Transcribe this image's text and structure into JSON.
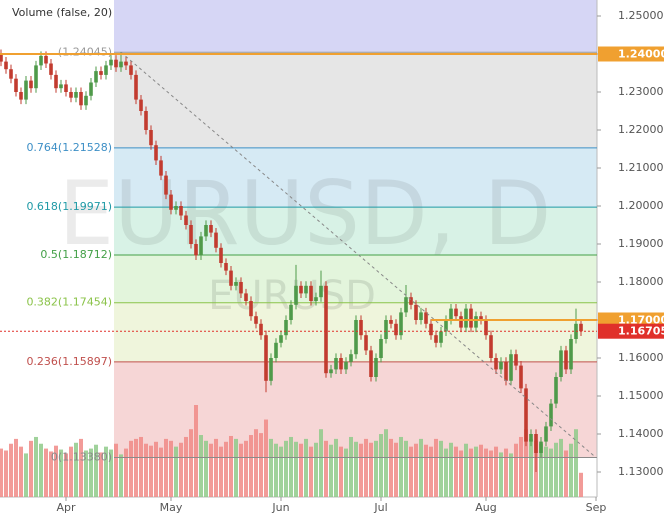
{
  "chart_data": {
    "type": "candlestick",
    "volume_label": "Volume (false, 20)",
    "watermark": "EURUSD, D",
    "watermark_sub": "EURUSD",
    "up_color": "#4f9a4a",
    "down_color": "#c23b2f",
    "volume_up_color": "#8fca8a",
    "volume_down_color": "#f08a86",
    "xlim": [
      -0.2,
      119.2
    ],
    "xticks": [
      {
        "value": 13,
        "label": "Apr"
      },
      {
        "value": 34,
        "label": "May"
      },
      {
        "value": 56,
        "label": "Jun"
      },
      {
        "value": 76,
        "label": "Jul"
      },
      {
        "value": 97,
        "label": "Aug"
      },
      {
        "value": 119,
        "label": "Sep"
      }
    ],
    "ylim": [
      1.12342,
      1.25421
    ],
    "yticks": [
      {
        "value": 1.25,
        "label": "1.25000"
      },
      {
        "value": 1.24,
        "label": "1.24000"
      },
      {
        "value": 1.23,
        "label": "1.23000"
      },
      {
        "value": 1.22,
        "label": "1.22000"
      },
      {
        "value": 1.21,
        "label": "1.21000"
      },
      {
        "value": 1.2,
        "label": "1.20000"
      },
      {
        "value": 1.19,
        "label": "1.19000"
      },
      {
        "value": 1.18,
        "label": "1.18000"
      },
      {
        "value": 1.17,
        "label": "1.17000"
      },
      {
        "value": 1.16,
        "label": "1.16000"
      },
      {
        "value": 1.15,
        "label": "1.15000"
      },
      {
        "value": 1.14,
        "label": "1.14000"
      },
      {
        "value": 1.13,
        "label": "1.13000"
      }
    ],
    "open": [
      1.24,
      1.238,
      1.236,
      1.2335,
      1.23,
      1.228,
      1.233,
      1.231,
      1.237,
      1.2395,
      1.2375,
      1.2345,
      1.231,
      1.232,
      1.23,
      1.2285,
      1.23,
      1.2265,
      1.229,
      1.2325,
      1.2355,
      1.2345,
      1.237,
      1.2385,
      1.2365,
      1.238,
      1.237,
      1.2345,
      1.228,
      1.225,
      1.22,
      1.216,
      1.212,
      1.208,
      1.203,
      1.199,
      1.2,
      1.1975,
      1.195,
      1.19,
      1.187,
      1.192,
      1.195,
      1.193,
      1.189,
      1.185,
      1.183,
      1.179,
      1.18,
      1.177,
      1.175,
      1.171,
      1.169,
      1.166,
      1.154,
      1.16,
      1.164,
      1.166,
      1.17,
      1.174,
      1.179,
      1.177,
      1.179,
      1.175,
      1.176,
      1.179,
      1.156,
      1.157,
      1.16,
      1.157,
      1.159,
      1.161,
      1.17,
      1.166,
      1.162,
      1.155,
      1.16,
      1.165,
      1.17,
      1.169,
      1.166,
      1.172,
      1.176,
      1.174,
      1.17,
      1.172,
      1.169,
      1.166,
      1.164,
      1.167,
      1.17,
      1.173,
      1.171,
      1.168,
      1.173,
      1.168,
      1.171,
      1.17,
      1.166,
      1.16,
      1.157,
      1.159,
      1.154,
      1.161,
      1.158,
      1.152,
      1.138,
      1.14,
      1.135,
      1.138,
      1.142,
      1.148,
      1.155,
      1.162,
      1.157,
      1.165,
      1.169
    ],
    "high": [
      1.2412,
      1.2392,
      1.2372,
      1.2347,
      1.2312,
      1.2342,
      1.2342,
      1.2382,
      1.2407,
      1.2407,
      1.2387,
      1.2357,
      1.2332,
      1.2332,
      1.2312,
      1.2312,
      1.2312,
      1.2302,
      1.2337,
      1.2367,
      1.2367,
      1.2382,
      1.2397,
      1.2397,
      1.2405,
      1.2392,
      1.2382,
      1.2357,
      1.2292,
      1.2262,
      1.2212,
      1.2172,
      1.2132,
      1.2092,
      1.2042,
      1.2012,
      1.2012,
      1.1987,
      1.1962,
      1.1912,
      1.1932,
      1.1962,
      1.1962,
      1.1942,
      1.1902,
      1.1862,
      1.1842,
      1.1812,
      1.1812,
      1.1782,
      1.1762,
      1.1722,
      1.1702,
      1.1672,
      1.1612,
      1.1652,
      1.1672,
      1.1712,
      1.1752,
      1.1845,
      1.1802,
      1.1802,
      1.1802,
      1.1772,
      1.183,
      1.1802,
      1.1582,
      1.1612,
      1.1612,
      1.1602,
      1.1622,
      1.1712,
      1.1712,
      1.1672,
      1.1632,
      1.1612,
      1.1662,
      1.1712,
      1.1712,
      1.1702,
      1.1732,
      1.1792,
      1.1772,
      1.1752,
      1.1732,
      1.1732,
      1.1702,
      1.1672,
      1.1682,
      1.1712,
      1.1742,
      1.1742,
      1.1722,
      1.1742,
      1.1742,
      1.1722,
      1.1722,
      1.1712,
      1.1672,
      1.1612,
      1.1602,
      1.1602,
      1.1622,
      1.1622,
      1.1592,
      1.1532,
      1.1412,
      1.1412,
      1.1392,
      1.1432,
      1.1492,
      1.1562,
      1.1632,
      1.1632,
      1.1662,
      1.173,
      1.1702
    ],
    "low": [
      1.2368,
      1.2348,
      1.2323,
      1.2288,
      1.2268,
      1.2268,
      1.2298,
      1.2298,
      1.2358,
      1.2363,
      1.2333,
      1.2298,
      1.2298,
      1.2288,
      1.2273,
      1.2273,
      1.2253,
      1.2253,
      1.2278,
      1.2313,
      1.2333,
      1.2333,
      1.2358,
      1.2353,
      1.2353,
      1.2358,
      1.2333,
      1.2268,
      1.2238,
      1.2188,
      1.2148,
      1.2108,
      1.2068,
      1.2018,
      1.1978,
      1.1978,
      1.1963,
      1.1938,
      1.1888,
      1.1858,
      1.1858,
      1.1908,
      1.1918,
      1.1878,
      1.1838,
      1.1818,
      1.1778,
      1.1778,
      1.1758,
      1.1738,
      1.1698,
      1.1678,
      1.1648,
      1.151,
      1.1528,
      1.1588,
      1.1628,
      1.1648,
      1.1688,
      1.1728,
      1.1758,
      1.1758,
      1.1738,
      1.1738,
      1.1748,
      1.1548,
      1.1548,
      1.1558,
      1.1558,
      1.1558,
      1.1578,
      1.1598,
      1.1648,
      1.1608,
      1.1538,
      1.1538,
      1.1588,
      1.1638,
      1.1678,
      1.1648,
      1.1648,
      1.1708,
      1.1728,
      1.1688,
      1.1688,
      1.1678,
      1.1648,
      1.1628,
      1.1628,
      1.1658,
      1.1688,
      1.1698,
      1.1668,
      1.1668,
      1.1668,
      1.1668,
      1.1688,
      1.1648,
      1.1588,
      1.1558,
      1.1558,
      1.1528,
      1.1528,
      1.1568,
      1.1508,
      1.1368,
      1.1368,
      1.13,
      1.1338,
      1.1368,
      1.1408,
      1.1468,
      1.1538,
      1.1558,
      1.1558,
      1.1638,
      1.1658
    ],
    "close": [
      1.238,
      1.236,
      1.2335,
      1.23,
      1.228,
      1.233,
      1.231,
      1.237,
      1.2395,
      1.2375,
      1.2345,
      1.231,
      1.232,
      1.23,
      1.2285,
      1.23,
      1.2265,
      1.229,
      1.2325,
      1.2355,
      1.2345,
      1.237,
      1.2385,
      1.2365,
      1.238,
      1.237,
      1.2345,
      1.228,
      1.225,
      1.22,
      1.216,
      1.212,
      1.208,
      1.203,
      1.199,
      1.2,
      1.1975,
      1.195,
      1.19,
      1.187,
      1.192,
      1.195,
      1.193,
      1.189,
      1.185,
      1.183,
      1.179,
      1.18,
      1.177,
      1.175,
      1.171,
      1.169,
      1.166,
      1.154,
      1.16,
      1.164,
      1.166,
      1.17,
      1.174,
      1.179,
      1.177,
      1.179,
      1.175,
      1.176,
      1.179,
      1.156,
      1.157,
      1.16,
      1.157,
      1.159,
      1.161,
      1.17,
      1.166,
      1.162,
      1.155,
      1.16,
      1.165,
      1.17,
      1.169,
      1.166,
      1.172,
      1.176,
      1.174,
      1.17,
      1.172,
      1.169,
      1.166,
      1.164,
      1.167,
      1.17,
      1.173,
      1.171,
      1.168,
      1.173,
      1.168,
      1.171,
      1.17,
      1.166,
      1.16,
      1.157,
      1.159,
      1.154,
      1.161,
      1.158,
      1.152,
      1.138,
      1.14,
      1.135,
      1.138,
      1.142,
      1.148,
      1.155,
      1.162,
      1.157,
      1.165,
      1.169,
      1.16705
    ],
    "volume": [
      50,
      48,
      55,
      60,
      52,
      45,
      58,
      62,
      55,
      50,
      47,
      53,
      49,
      45,
      52,
      56,
      60,
      48,
      50,
      54,
      46,
      52,
      49,
      55,
      44,
      50,
      58,
      60,
      62,
      55,
      53,
      57,
      51,
      60,
      58,
      52,
      56,
      62,
      70,
      95,
      64,
      58,
      55,
      60,
      52,
      57,
      63,
      60,
      55,
      58,
      64,
      70,
      66,
      80,
      60,
      55,
      52,
      58,
      62,
      57,
      55,
      60,
      52,
      56,
      70,
      58,
      54,
      60,
      52,
      50,
      62,
      57,
      55,
      60,
      56,
      58,
      65,
      70,
      60,
      56,
      62,
      58,
      52,
      55,
      60,
      54,
      52,
      60,
      58,
      50,
      56,
      52,
      48,
      55,
      50,
      52,
      54,
      50,
      48,
      52,
      46,
      50,
      45,
      55,
      62,
      70,
      60,
      58,
      55,
      52,
      50,
      56,
      60,
      48,
      55,
      70,
      25
    ],
    "fib": {
      "start": 22.6,
      "band_colors": [
        "#d6d6f5",
        "#e6e6e6",
        "#d6eaf4",
        "#d8f2e6",
        "#e3f5dc",
        "#eff5dc",
        "#f6d6d6"
      ],
      "levels": [
        {
          "value": 1.24045,
          "label": "(1.24045)",
          "color": "#999999"
        },
        {
          "value": 1.21528,
          "label": "0.764(1.21528)",
          "color": "#3d8fc6"
        },
        {
          "value": 1.19971,
          "label": "0.618(1.19971)",
          "color": "#1f9aa6"
        },
        {
          "value": 1.18712,
          "label": "0.5(1.18712)",
          "color": "#43a047"
        },
        {
          "value": 1.17454,
          "label": "0.382(1.17454)",
          "color": "#8bc34a"
        },
        {
          "value": 1.15897,
          "label": "0.236(1.15897)",
          "color": "#c0504d"
        },
        {
          "value": 1.1338,
          "label": "0(1.13380)",
          "color": "#8a8a8a"
        }
      ]
    },
    "trend_line": {
      "x": [
        24,
        119
      ],
      "y": [
        1.24045,
        1.1338
      ],
      "color": "#888888"
    },
    "price_lines": [
      {
        "value": 1.24,
        "label": "1.24000",
        "color": "#f0a030",
        "start": -0.2,
        "style": "solid"
      },
      {
        "value": 1.17,
        "label": "1.17000",
        "color": "#f0a030",
        "start": 86,
        "style": "solid"
      },
      {
        "value": 1.16705,
        "label": "1.16705",
        "color": "#e0302a",
        "start": -0.2,
        "style": "dotted"
      }
    ]
  }
}
